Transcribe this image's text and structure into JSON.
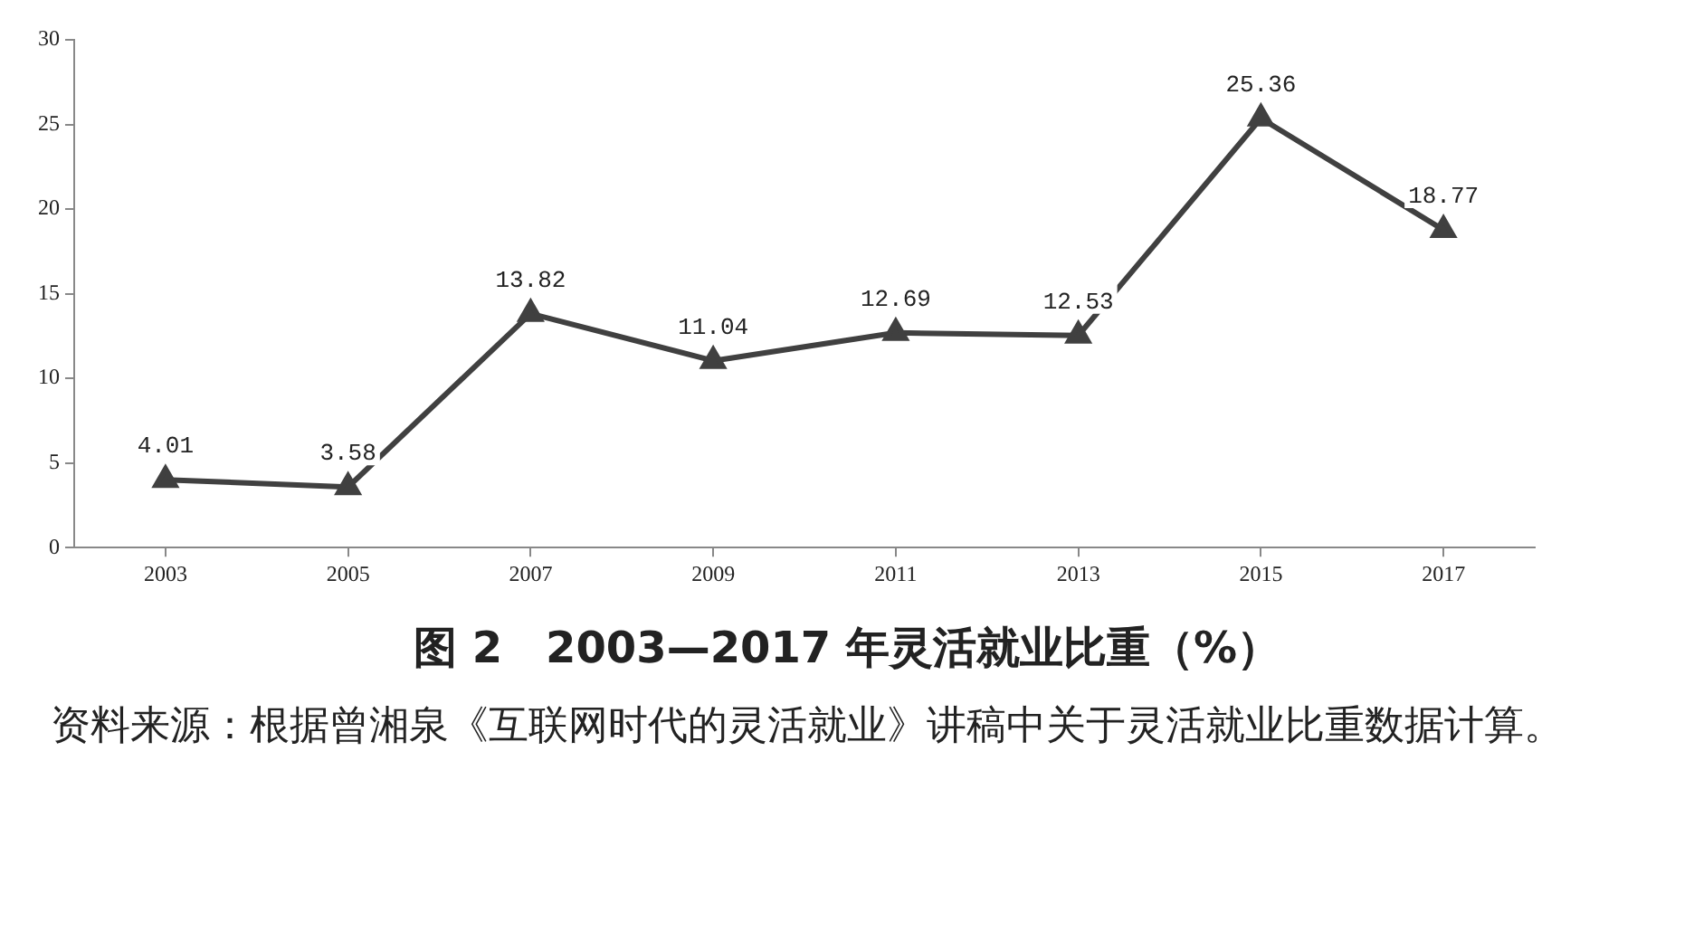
{
  "chart_data": {
    "type": "line",
    "title": "图 2　2003—2017 年灵活就业比重（%）",
    "categories": [
      "2003",
      "2005",
      "2007",
      "2009",
      "2011",
      "2013",
      "2015",
      "2017"
    ],
    "values": [
      4.01,
      3.58,
      13.82,
      11.04,
      12.69,
      12.53,
      25.36,
      18.77
    ],
    "color": "#404040",
    "marker": "triangle",
    "data_labels": true,
    "grid": false,
    "legend": false,
    "ylim": [
      0,
      30
    ],
    "yticks": [
      0,
      5,
      10,
      15,
      20,
      25,
      30
    ],
    "annotations": [
      "资料来源：根据曾湘泉《互联网时代的灵活就业》讲稿中关于灵活就业比重数据计算。"
    ]
  }
}
